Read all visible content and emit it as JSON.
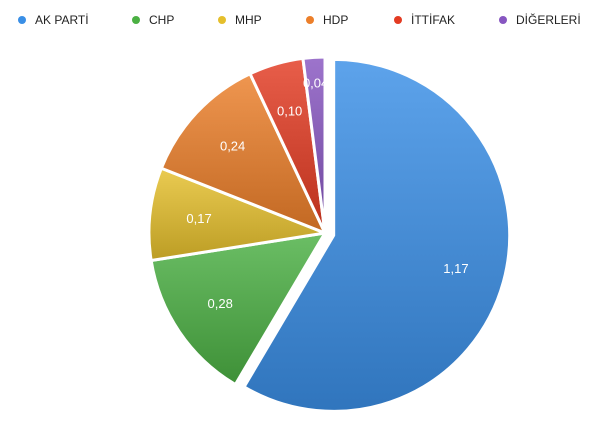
{
  "chart_data": {
    "type": "pie",
    "categories": [
      "AK PARTİ",
      "CHP",
      "MHP",
      "HDP",
      "İTTİFAK",
      "DİĞERLERİ"
    ],
    "values": [
      1.17,
      0.28,
      0.17,
      0.24,
      0.1,
      0.04
    ],
    "value_labels": [
      "1,17",
      "0,28",
      "0,17",
      "0,24",
      "0,10",
      "0,04"
    ],
    "colors": [
      "#3a8fe6",
      "#4bb043",
      "#e5bf2c",
      "#ec7f2a",
      "#e33b22",
      "#8756c1"
    ],
    "exploded": [
      "AK PARTİ"
    ],
    "legend_position": "top",
    "title": ""
  }
}
